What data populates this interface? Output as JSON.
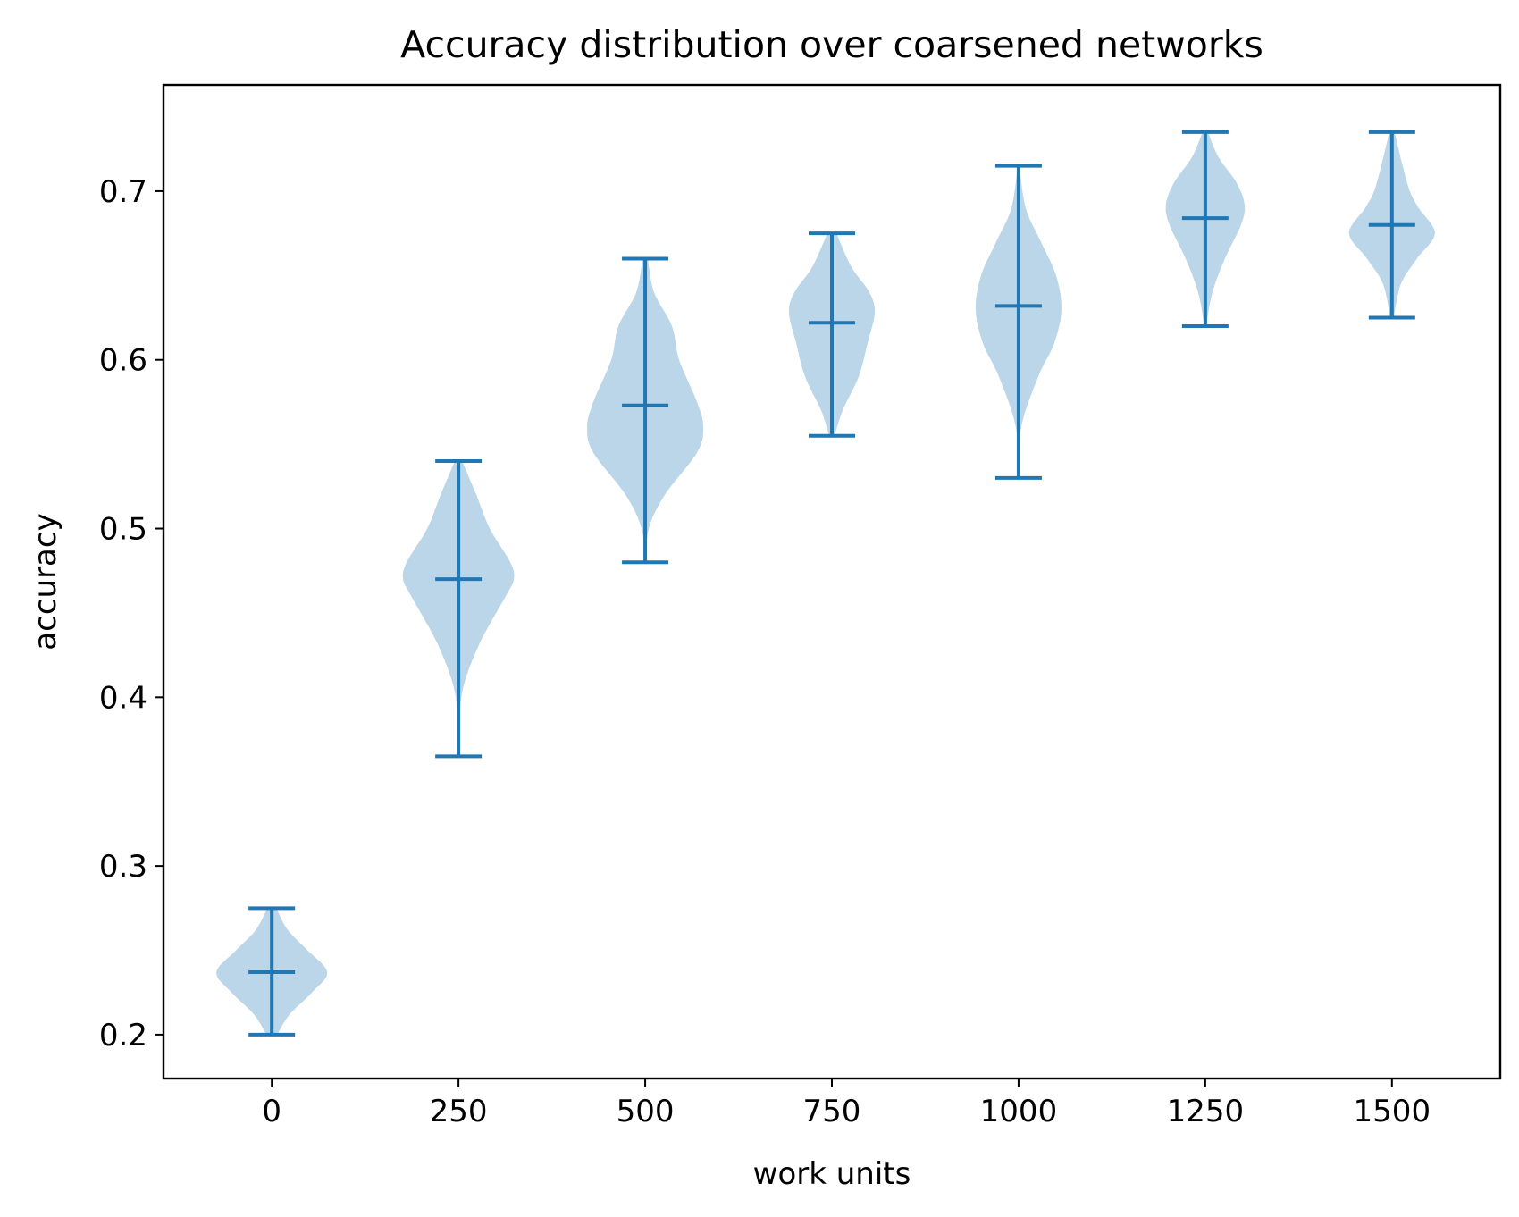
{
  "chart_data": {
    "type": "violin",
    "title": "Accuracy distribution over coarsened networks",
    "xlabel": "work units",
    "ylabel": "accuracy",
    "xlim": [
      -145,
      1645
    ],
    "ylim": [
      0.174,
      0.763
    ],
    "xticks": [
      0,
      250,
      500,
      750,
      1000,
      1250,
      1500
    ],
    "xtick_labels": [
      "0",
      "250",
      "500",
      "750",
      "1000",
      "1250",
      "1500"
    ],
    "yticks": [
      0.2,
      0.3,
      0.4,
      0.5,
      0.6,
      0.7
    ],
    "ytick_labels": [
      "0.2",
      "0.3",
      "0.4",
      "0.5",
      "0.6",
      "0.7"
    ],
    "grid": false,
    "colors": {
      "body": "#1f77b4",
      "body_opacity": 0.3,
      "lines": "#1f77b4"
    },
    "series": [
      {
        "x": 0,
        "min": 0.2,
        "mean": 0.237,
        "max": 0.275,
        "profile": [
          [
            0.2,
            6
          ],
          [
            0.212,
            20
          ],
          [
            0.225,
            45
          ],
          [
            0.237,
            62
          ],
          [
            0.25,
            40
          ],
          [
            0.262,
            18
          ],
          [
            0.275,
            5
          ]
        ]
      },
      {
        "x": 250,
        "min": 0.365,
        "mean": 0.47,
        "max": 0.54,
        "profile": [
          [
            0.365,
            1
          ],
          [
            0.4,
            3
          ],
          [
            0.43,
            22
          ],
          [
            0.46,
            53
          ],
          [
            0.47,
            62
          ],
          [
            0.48,
            58
          ],
          [
            0.5,
            35
          ],
          [
            0.52,
            20
          ],
          [
            0.54,
            4
          ]
        ]
      },
      {
        "x": 500,
        "min": 0.48,
        "mean": 0.573,
        "max": 0.66,
        "profile": [
          [
            0.48,
            1
          ],
          [
            0.5,
            4
          ],
          [
            0.52,
            22
          ],
          [
            0.545,
            58
          ],
          [
            0.56,
            65
          ],
          [
            0.575,
            58
          ],
          [
            0.6,
            38
          ],
          [
            0.62,
            30
          ],
          [
            0.64,
            10
          ],
          [
            0.66,
            3
          ]
        ]
      },
      {
        "x": 750,
        "min": 0.555,
        "mean": 0.622,
        "max": 0.675,
        "profile": [
          [
            0.555,
            3
          ],
          [
            0.57,
            12
          ],
          [
            0.59,
            30
          ],
          [
            0.61,
            40
          ],
          [
            0.628,
            48
          ],
          [
            0.64,
            42
          ],
          [
            0.655,
            22
          ],
          [
            0.675,
            5
          ]
        ]
      },
      {
        "x": 1000,
        "min": 0.53,
        "mean": 0.632,
        "max": 0.715,
        "profile": [
          [
            0.53,
            1
          ],
          [
            0.56,
            3
          ],
          [
            0.59,
            22
          ],
          [
            0.61,
            40
          ],
          [
            0.63,
            48
          ],
          [
            0.65,
            42
          ],
          [
            0.67,
            25
          ],
          [
            0.69,
            8
          ],
          [
            0.715,
            1
          ]
        ]
      },
      {
        "x": 1250,
        "min": 0.62,
        "mean": 0.684,
        "max": 0.735,
        "profile": [
          [
            0.62,
            1
          ],
          [
            0.64,
            8
          ],
          [
            0.66,
            22
          ],
          [
            0.68,
            40
          ],
          [
            0.692,
            44
          ],
          [
            0.705,
            35
          ],
          [
            0.72,
            15
          ],
          [
            0.735,
            3
          ]
        ]
      },
      {
        "x": 1500,
        "min": 0.625,
        "mean": 0.68,
        "max": 0.735,
        "profile": [
          [
            0.625,
            2
          ],
          [
            0.645,
            10
          ],
          [
            0.66,
            28
          ],
          [
            0.675,
            48
          ],
          [
            0.69,
            30
          ],
          [
            0.7,
            20
          ],
          [
            0.715,
            12
          ],
          [
            0.735,
            3
          ]
        ]
      }
    ]
  }
}
